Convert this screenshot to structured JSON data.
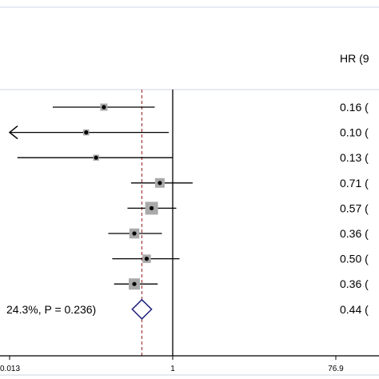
{
  "chart_data": {
    "type": "forest",
    "axis": {
      "scale": "log",
      "ticks": [
        0.013,
        1,
        76.9
      ],
      "tick_labels": [
        "0.013",
        "1",
        "76.9"
      ]
    },
    "header": {
      "hr_label": "HR (9"
    },
    "reference_line": {
      "value": 1
    },
    "pooled_reference_line": {
      "value": 0.44,
      "style": "dashed",
      "color": "#a33a3a"
    },
    "rows": [
      {
        "hr": 0.16,
        "lower": 0.041,
        "upper": 0.62,
        "weight": 1.0,
        "arrow_left": false,
        "label": "0.16 ("
      },
      {
        "hr": 0.1,
        "lower": 0.013,
        "upper": 0.9,
        "weight": 0.7,
        "arrow_left": true,
        "label": "0.10 ("
      },
      {
        "hr": 0.13,
        "lower": 0.016,
        "upper": 0.99,
        "weight": 0.7,
        "arrow_left": false,
        "label": "0.13 ("
      },
      {
        "hr": 0.71,
        "lower": 0.33,
        "upper": 1.7,
        "weight": 1.6,
        "arrow_left": false,
        "label": "0.71 ("
      },
      {
        "hr": 0.57,
        "lower": 0.3,
        "upper": 1.1,
        "weight": 2.4,
        "arrow_left": false,
        "label": "0.57 ("
      },
      {
        "hr": 0.36,
        "lower": 0.18,
        "upper": 0.75,
        "weight": 1.7,
        "arrow_left": false,
        "label": "0.36 ("
      },
      {
        "hr": 0.5,
        "lower": 0.2,
        "upper": 1.2,
        "weight": 1.3,
        "arrow_left": false,
        "label": "0.50 ("
      },
      {
        "hr": 0.36,
        "lower": 0.21,
        "upper": 0.67,
        "weight": 2.0,
        "arrow_left": false,
        "label": "0.36 ("
      }
    ],
    "pooled": {
      "hr": 0.44,
      "lower": 0.34,
      "upper": 0.57,
      "label": "0.44 (",
      "heterogeneity_label": "24.3%, P = 0.236)",
      "diamond_color": "#1f1f7a"
    }
  }
}
